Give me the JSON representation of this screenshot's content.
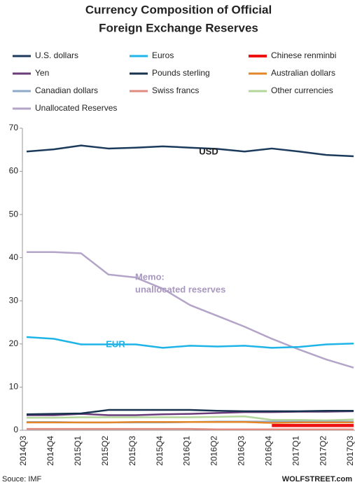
{
  "chart_data": {
    "type": "line",
    "title": [
      "Currency Composition of Official",
      "Foreign Exchange Reserves"
    ],
    "categories": [
      "2014Q3",
      "2014Q4",
      "2015Q1",
      "2015Q2",
      "2015Q3",
      "2015Q4",
      "2016Q1",
      "2016Q2",
      "2016Q3",
      "2016Q4",
      "2017Q1",
      "2017Q2",
      "2017Q3"
    ],
    "series": [
      {
        "name": "U.S. dollars",
        "color": "#1b3a5c",
        "values": [
          64.6,
          65.1,
          66.0,
          65.3,
          65.5,
          65.8,
          65.5,
          65.2,
          64.6,
          65.3,
          64.6,
          63.8,
          63.5
        ]
      },
      {
        "name": "Euros",
        "color": "#1fb4e8",
        "values": [
          21.6,
          21.2,
          19.9,
          19.9,
          19.9,
          19.1,
          19.6,
          19.4,
          19.6,
          19.1,
          19.3,
          19.9,
          20.1
        ]
      },
      {
        "name": "Chinese renminbi",
        "color": "#ee1111",
        "values": [
          null,
          null,
          null,
          null,
          null,
          null,
          null,
          null,
          null,
          1.1,
          1.1,
          1.1,
          1.1
        ]
      },
      {
        "name": "Yen",
        "color": "#6a3d7a",
        "values": [
          3.5,
          3.5,
          3.8,
          3.5,
          3.5,
          3.7,
          3.8,
          4.0,
          4.2,
          4.2,
          4.3,
          4.3,
          4.4
        ]
      },
      {
        "name": "Pounds sterling",
        "color": "#17324f",
        "values": [
          3.7,
          3.8,
          3.9,
          4.7,
          4.7,
          4.7,
          4.7,
          4.5,
          4.4,
          4.4,
          4.4,
          4.5,
          4.5
        ]
      },
      {
        "name": "Australian dollars",
        "color": "#e3862a",
        "values": [
          1.8,
          1.8,
          1.8,
          1.8,
          1.9,
          1.9,
          1.9,
          1.9,
          1.9,
          1.7,
          1.8,
          1.8,
          1.8
        ]
      },
      {
        "name": "Canadian dollars",
        "color": "#8fa9c9",
        "values": [
          1.9,
          1.9,
          1.8,
          1.8,
          1.8,
          1.8,
          1.9,
          2.0,
          2.0,
          2.0,
          2.0,
          2.0,
          2.0
        ]
      },
      {
        "name": "Swiss francs",
        "color": "#e08a80",
        "values": [
          0.3,
          0.3,
          0.3,
          0.3,
          0.3,
          0.3,
          0.3,
          0.2,
          0.2,
          0.2,
          0.2,
          0.2,
          0.2
        ]
      },
      {
        "name": "Other currencies",
        "color": "#b3d69a",
        "values": [
          2.9,
          2.9,
          3.0,
          3.0,
          3.0,
          3.0,
          3.0,
          3.1,
          3.2,
          2.4,
          2.4,
          2.3,
          2.5
        ]
      },
      {
        "name": "Unallocated Reserves",
        "color": "#b3a4c8",
        "values": [
          41.3,
          41.3,
          41.0,
          36.1,
          35.4,
          32.8,
          29.0,
          26.5,
          24.0,
          21.2,
          18.7,
          16.4,
          14.5
        ]
      }
    ],
    "ylim": [
      0,
      70
    ],
    "yticks": [
      0,
      10,
      20,
      30,
      40,
      50,
      60,
      70
    ],
    "annotations": [
      "USD",
      "EUR",
      "Memo:",
      "unallocated reserves"
    ],
    "source": "Souce: IMF",
    "credit": "WOLFSTREET.com"
  }
}
